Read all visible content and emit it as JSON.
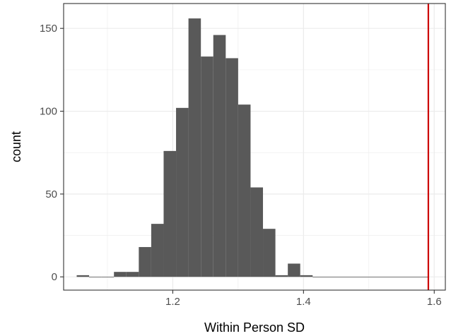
{
  "chart_data": {
    "type": "bar",
    "xlabel": "Within Person SD",
    "ylabel": "count",
    "xlim": [
      1.033,
      1.617
    ],
    "ylim": [
      -8,
      165
    ],
    "x_ticks": [
      1.2,
      1.4,
      1.6
    ],
    "x_tick_labels": [
      "1.2",
      "1.4",
      "1.6"
    ],
    "y_ticks": [
      0,
      50,
      100,
      150
    ],
    "y_tick_labels": [
      "0",
      "50",
      "100",
      "150"
    ],
    "grid": true,
    "bin_width": 0.0191,
    "bins": [
      {
        "x_start": 1.053,
        "x_end": 1.072,
        "count": 1
      },
      {
        "x_start": 1.072,
        "x_end": 1.091,
        "count": 0
      },
      {
        "x_start": 1.091,
        "x_end": 1.11,
        "count": 0
      },
      {
        "x_start": 1.11,
        "x_end": 1.129,
        "count": 3
      },
      {
        "x_start": 1.129,
        "x_end": 1.148,
        "count": 3
      },
      {
        "x_start": 1.148,
        "x_end": 1.167,
        "count": 18
      },
      {
        "x_start": 1.167,
        "x_end": 1.186,
        "count": 32
      },
      {
        "x_start": 1.186,
        "x_end": 1.205,
        "count": 76
      },
      {
        "x_start": 1.205,
        "x_end": 1.224,
        "count": 102
      },
      {
        "x_start": 1.224,
        "x_end": 1.243,
        "count": 156
      },
      {
        "x_start": 1.243,
        "x_end": 1.262,
        "count": 133
      },
      {
        "x_start": 1.262,
        "x_end": 1.281,
        "count": 146
      },
      {
        "x_start": 1.281,
        "x_end": 1.3,
        "count": 132
      },
      {
        "x_start": 1.3,
        "x_end": 1.319,
        "count": 104
      },
      {
        "x_start": 1.319,
        "x_end": 1.338,
        "count": 54
      },
      {
        "x_start": 1.338,
        "x_end": 1.357,
        "count": 29
      },
      {
        "x_start": 1.357,
        "x_end": 1.376,
        "count": 1
      },
      {
        "x_start": 1.376,
        "x_end": 1.395,
        "count": 8
      },
      {
        "x_start": 1.395,
        "x_end": 1.414,
        "count": 1
      },
      {
        "x_start": 1.414,
        "x_end": 1.591,
        "count": 0
      }
    ],
    "reference_line": {
      "x": 1.591,
      "color": "#cc0000"
    },
    "bar_color": "#595959",
    "grid_color": "#ebebeb"
  }
}
